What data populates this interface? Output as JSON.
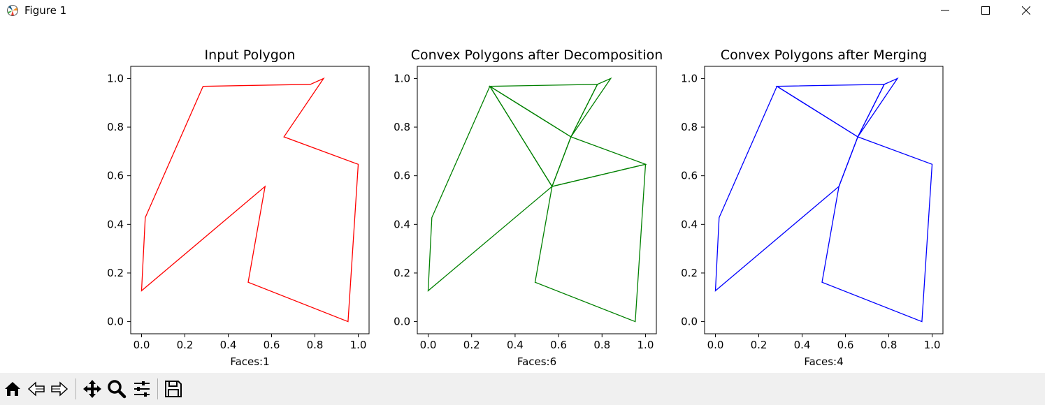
{
  "window": {
    "title": "Figure 1"
  },
  "toolbar": [
    "home-icon",
    "back-icon",
    "forward-icon",
    "pan-icon",
    "zoom-icon",
    "configure-subplots-icon",
    "save-icon"
  ],
  "chart_data": [
    {
      "type": "line",
      "title": "Input Polygon",
      "xlabel": "Faces:1",
      "ylabel": "",
      "xlim": [
        -0.05,
        1.05
      ],
      "ylim": [
        -0.05,
        1.05
      ],
      "xticks": [
        "0.0",
        "0.2",
        "0.4",
        "0.6",
        "0.8",
        "1.0"
      ],
      "yticks": [
        "0.0",
        "0.2",
        "0.4",
        "0.6",
        "0.8",
        "1.0"
      ],
      "grid": false,
      "color": "#ff0000",
      "polygons": [
        [
          [
            0.953,
            0.0
          ],
          [
            1.0,
            0.647
          ],
          [
            0.657,
            0.76
          ],
          [
            0.84,
            1.0
          ],
          [
            0.779,
            0.976
          ],
          [
            0.284,
            0.968
          ],
          [
            0.017,
            0.428
          ],
          [
            0.0,
            0.127
          ],
          [
            0.57,
            0.556
          ],
          [
            0.492,
            0.162
          ]
        ]
      ]
    },
    {
      "type": "line",
      "title": "Convex Polygons after Decomposition",
      "xlabel": "Faces:6",
      "ylabel": "",
      "xlim": [
        -0.05,
        1.05
      ],
      "ylim": [
        -0.05,
        1.05
      ],
      "xticks": [
        "0.0",
        "0.2",
        "0.4",
        "0.6",
        "0.8",
        "1.0"
      ],
      "yticks": [
        "0.0",
        "0.2",
        "0.4",
        "0.6",
        "0.8",
        "1.0"
      ],
      "grid": false,
      "color": "#008000",
      "polygons": [
        [
          [
            0.284,
            0.968
          ],
          [
            0.017,
            0.428
          ],
          [
            0.0,
            0.127
          ],
          [
            0.57,
            0.556
          ]
        ],
        [
          [
            0.953,
            0.0
          ],
          [
            1.0,
            0.647
          ],
          [
            0.57,
            0.556
          ],
          [
            0.492,
            0.162
          ]
        ],
        [
          [
            0.57,
            0.556
          ],
          [
            1.0,
            0.647
          ],
          [
            0.657,
            0.76
          ]
        ],
        [
          [
            0.284,
            0.968
          ],
          [
            0.57,
            0.556
          ],
          [
            0.657,
            0.76
          ]
        ],
        [
          [
            0.284,
            0.968
          ],
          [
            0.657,
            0.76
          ],
          [
            0.779,
            0.976
          ]
        ],
        [
          [
            0.657,
            0.76
          ],
          [
            0.84,
            1.0
          ],
          [
            0.779,
            0.976
          ]
        ]
      ]
    },
    {
      "type": "line",
      "title": "Convex Polygons after Merging",
      "xlabel": "Faces:4",
      "ylabel": "",
      "xlim": [
        -0.05,
        1.05
      ],
      "ylim": [
        -0.05,
        1.05
      ],
      "xticks": [
        "0.0",
        "0.2",
        "0.4",
        "0.6",
        "0.8",
        "1.0"
      ],
      "yticks": [
        "0.0",
        "0.2",
        "0.4",
        "0.6",
        "0.8",
        "1.0"
      ],
      "grid": false,
      "color": "#0000ff",
      "polygons": [
        [
          [
            0.284,
            0.968
          ],
          [
            0.017,
            0.428
          ],
          [
            0.0,
            0.127
          ],
          [
            0.57,
            0.556
          ],
          [
            0.657,
            0.76
          ]
        ],
        [
          [
            0.953,
            0.0
          ],
          [
            1.0,
            0.647
          ],
          [
            0.657,
            0.76
          ],
          [
            0.57,
            0.556
          ],
          [
            0.492,
            0.162
          ]
        ],
        [
          [
            0.284,
            0.968
          ],
          [
            0.657,
            0.76
          ],
          [
            0.779,
            0.976
          ]
        ],
        [
          [
            0.657,
            0.76
          ],
          [
            0.84,
            1.0
          ],
          [
            0.779,
            0.976
          ]
        ]
      ]
    }
  ]
}
